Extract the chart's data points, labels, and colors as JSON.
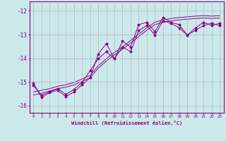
{
  "xlabel": "Windchill (Refroidissement éolien,°C)",
  "xlim": [
    -0.5,
    23.5
  ],
  "ylim": [
    -16.3,
    -11.6
  ],
  "yticks": [
    -16,
    -15,
    -14,
    -13,
    -12
  ],
  "xticks": [
    0,
    1,
    2,
    3,
    4,
    5,
    6,
    7,
    8,
    9,
    10,
    11,
    12,
    13,
    14,
    15,
    16,
    17,
    18,
    19,
    20,
    21,
    22,
    23
  ],
  "bg_color": "#cce9e9",
  "line_color": "#880088",
  "grid_color": "#aaaacc",
  "line1": [
    -15.05,
    -15.65,
    -15.45,
    -15.35,
    -15.62,
    -15.42,
    -15.12,
    -14.82,
    -13.82,
    -13.38,
    -14.02,
    -13.28,
    -13.52,
    -12.58,
    -12.48,
    -12.88,
    -12.28,
    -12.48,
    -12.58,
    -13.02,
    -12.72,
    -12.48,
    -12.62,
    -12.52
  ],
  "line2": [
    -15.15,
    -15.55,
    -15.42,
    -15.28,
    -15.52,
    -15.32,
    -15.02,
    -14.52,
    -14.02,
    -13.72,
    -14.02,
    -13.52,
    -13.72,
    -12.82,
    -12.62,
    -13.02,
    -12.42,
    -12.52,
    -12.72,
    -13.02,
    -12.82,
    -12.62,
    -12.52,
    -12.62
  ],
  "line3_slope": [
    -15.55,
    -15.48,
    -15.38,
    -15.28,
    -15.22,
    -15.12,
    -14.98,
    -14.82,
    -14.42,
    -14.12,
    -13.85,
    -13.62,
    -13.35,
    -13.08,
    -12.82,
    -12.58,
    -12.48,
    -12.42,
    -12.38,
    -12.35,
    -12.32,
    -12.3,
    -12.32,
    -12.3
  ],
  "line4_slope": [
    -15.42,
    -15.35,
    -15.28,
    -15.18,
    -15.12,
    -15.02,
    -14.88,
    -14.72,
    -14.32,
    -14.02,
    -13.75,
    -13.52,
    -13.25,
    -12.98,
    -12.72,
    -12.48,
    -12.38,
    -12.32,
    -12.28,
    -12.25,
    -12.22,
    -12.2,
    -12.22,
    -12.2
  ]
}
